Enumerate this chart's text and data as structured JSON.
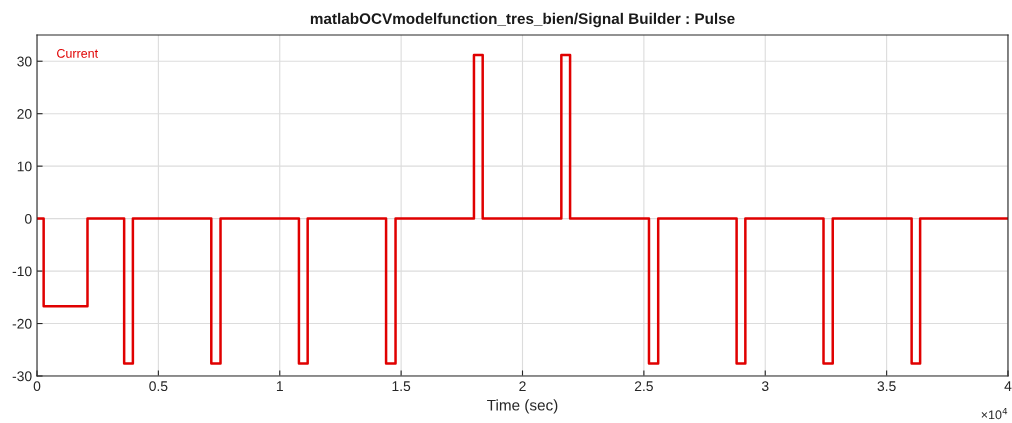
{
  "chart_data": {
    "type": "step",
    "title": "matlabOCVmodelfunction_tres_bien/Signal Builder : Pulse",
    "xlabel": "Time (sec)",
    "x": [
      0,
      0.0274,
      0.208,
      0.359,
      0.395,
      0.718,
      0.756,
      1.079,
      1.115,
      1.438,
      1.477,
      1.8,
      1.836,
      2.16,
      2.196,
      2.521,
      2.559,
      2.882,
      2.918,
      3.24,
      3.278,
      3.603,
      3.638,
      4
    ],
    "series": [
      {
        "name": "Current",
        "color": "#e00000",
        "values": [
          0,
          -16.7,
          0,
          -27.6,
          0,
          -27.6,
          0,
          -27.6,
          0,
          -27.6,
          0,
          31.2,
          0,
          31.2,
          0,
          -27.6,
          0,
          -27.6,
          0,
          -27.6,
          0,
          -27.6,
          0,
          0
        ]
      }
    ],
    "xlim": [
      0,
      4
    ],
    "ylim": [
      -30,
      35
    ],
    "xticks": [
      0,
      0.5,
      1,
      1.5,
      2,
      2.5,
      3,
      3.5,
      4
    ],
    "yticks": [
      -30,
      -20,
      -10,
      0,
      10,
      20,
      30
    ],
    "annotations": [
      "×10$^{4}$"
    ],
    "grid": true,
    "legend": "top left",
    "line_style": "solid",
    "marker": "none"
  }
}
